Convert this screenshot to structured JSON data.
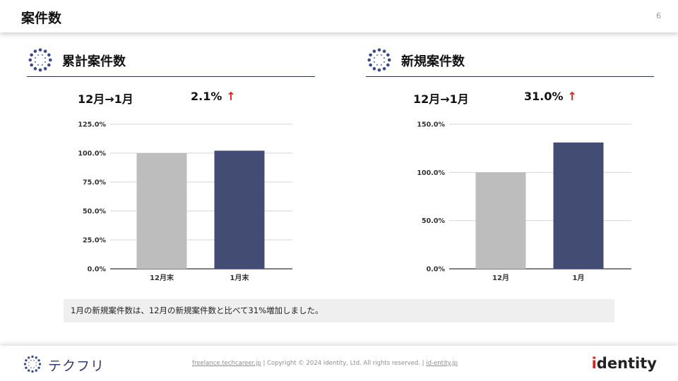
{
  "header": {
    "title": "案件数",
    "page_number": "6"
  },
  "sections": [
    {
      "title": "累計案件数",
      "period": "12月→1月",
      "change": "2.1%",
      "change_arrow": "↑"
    },
    {
      "title": "新規案件数",
      "period": "12月→1月",
      "change": "31.0%",
      "change_arrow": "↑"
    }
  ],
  "chart_data": [
    {
      "type": "bar",
      "categories": [
        "12月末",
        "1月末"
      ],
      "values": [
        100.0,
        102.1
      ],
      "ylim": [
        0,
        125
      ],
      "yticks": [
        "0.0%",
        "25.0%",
        "50.0%",
        "75.0%",
        "100.0%",
        "125.0%"
      ],
      "ytick_values": [
        0,
        25,
        50,
        75,
        100,
        125
      ],
      "colors": [
        "#bdbdbd",
        "#434c73"
      ],
      "grid": true
    },
    {
      "type": "bar",
      "categories": [
        "12月",
        "1月"
      ],
      "values": [
        100.0,
        131.0
      ],
      "ylim": [
        0,
        150
      ],
      "yticks": [
        "0.0%",
        "50.0%",
        "100.0%",
        "150.0%"
      ],
      "ytick_values": [
        0,
        50,
        100,
        150
      ],
      "colors": [
        "#bdbdbd",
        "#434c73"
      ],
      "grid": true
    }
  ],
  "note": "1月の新規案件数は、12月の新規案件数と比べて31%増加しました。",
  "footer": {
    "brand_name": "テクフリ",
    "link1": "freelance.techcareer.jp",
    "sep1": "|",
    "copyright": "Copyright © 2024 identity, Ltd. All rights reserved.",
    "sep2": "|",
    "link2": "id-entity.jp",
    "company_prefix": "i",
    "company_rest": "dentity"
  }
}
